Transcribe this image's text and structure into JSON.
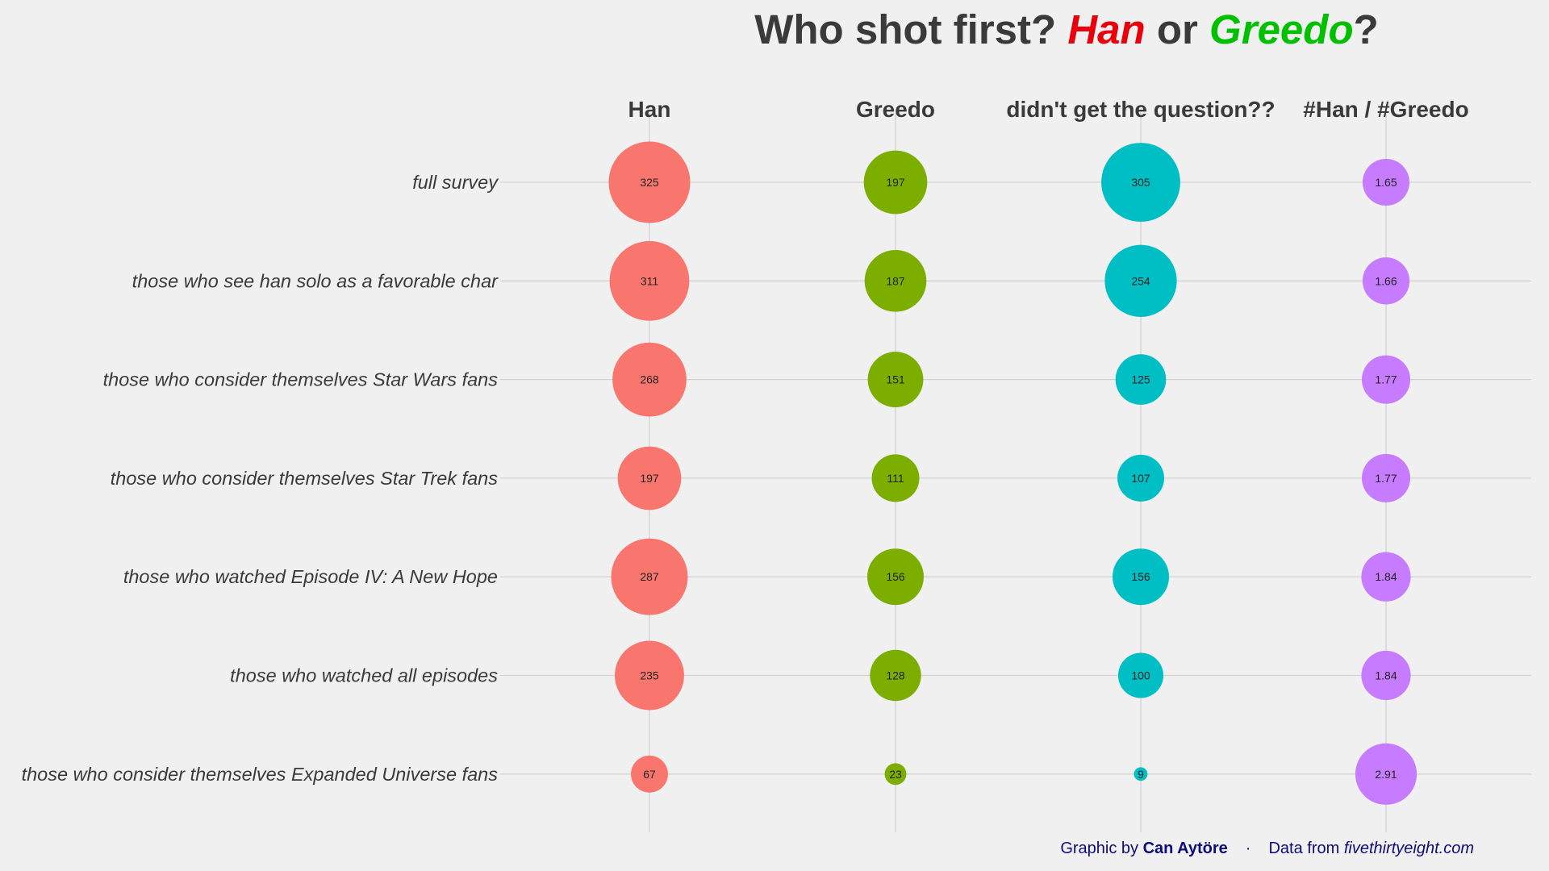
{
  "chart_data": {
    "type": "bubble-matrix",
    "title": {
      "part1": "Who shot first? ",
      "han": "Han",
      "part2": " or ",
      "greedo": "Greedo",
      "part3": "?"
    },
    "columns": [
      "Han",
      "Greedo",
      "didn't get the question??",
      "#Han / #Greedo"
    ],
    "rows": [
      "full survey",
      "those who see han solo as a favorable char",
      "those who consider themselves Star Wars fans",
      "those who consider themselves Star Trek fans",
      "those who watched Episode IV: A New Hope",
      "those who watched all episodes",
      "those who consider themselves Expanded Universe fans"
    ],
    "values": {
      "Han": [
        325,
        311,
        268,
        197,
        287,
        235,
        67
      ],
      "Greedo": [
        197,
        187,
        151,
        111,
        156,
        128,
        23
      ],
      "didn't get the question??": [
        305,
        254,
        125,
        107,
        156,
        100,
        9
      ],
      "#Han / #Greedo": [
        "1.65",
        "1.66",
        "1.77",
        "1.77",
        "1.84",
        "1.84",
        "2.91"
      ]
    },
    "colors": {
      "Han": "#f8766d",
      "Greedo": "#7cae00",
      "didn't get the question??": "#00bfc4",
      "#Han / #Greedo": "#c77cff"
    },
    "grid": true
  },
  "caption": {
    "prefix": "Graphic by ",
    "author": "Can Aytöre",
    "separator": "·",
    "data_prefix": "Data from ",
    "source": "fivethirtyeight.com"
  }
}
